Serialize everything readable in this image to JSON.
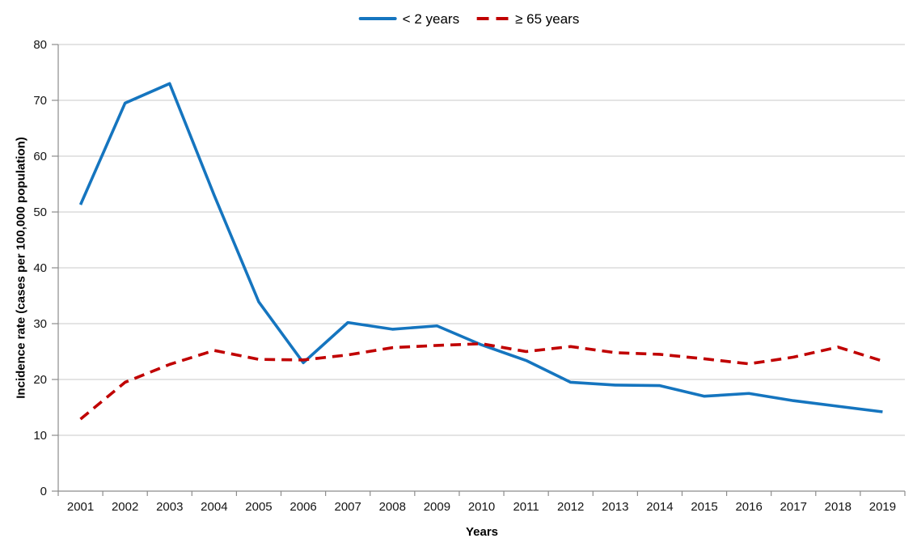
{
  "chart_data": {
    "type": "line",
    "title": "",
    "xlabel": "Years",
    "ylabel": "Incidence rate (cases per 100,000 population)",
    "x": [
      2001,
      2002,
      2003,
      2004,
      2005,
      2006,
      2007,
      2008,
      2009,
      2010,
      2011,
      2012,
      2013,
      2014,
      2015,
      2016,
      2017,
      2018,
      2019
    ],
    "ylim": [
      0,
      80
    ],
    "yticks": [
      0,
      10,
      20,
      30,
      40,
      50,
      60,
      70,
      80
    ],
    "grid": "horizontal",
    "legend_position": "top-center",
    "series": [
      {
        "name": "< 2 years",
        "style": "solid",
        "color": "#1575BF",
        "values": [
          51.3,
          69.5,
          73.0,
          53.0,
          33.9,
          23.0,
          30.2,
          29.0,
          29.6,
          26.2,
          23.4,
          19.5,
          19.0,
          18.9,
          17.0,
          17.5,
          16.2,
          15.2,
          14.2
        ]
      },
      {
        "name": "≥ 65 years",
        "style": "dashed",
        "color": "#C00000",
        "values": [
          12.9,
          19.5,
          22.7,
          25.2,
          23.6,
          23.5,
          24.4,
          25.7,
          26.1,
          26.4,
          25.0,
          25.9,
          24.8,
          24.5,
          23.7,
          22.8,
          24.0,
          25.8,
          23.3
        ]
      }
    ]
  },
  "style_colors": {
    "gridline": "#C8C8C8",
    "axis": "#8C8C8C",
    "tick_label": "#141414"
  }
}
